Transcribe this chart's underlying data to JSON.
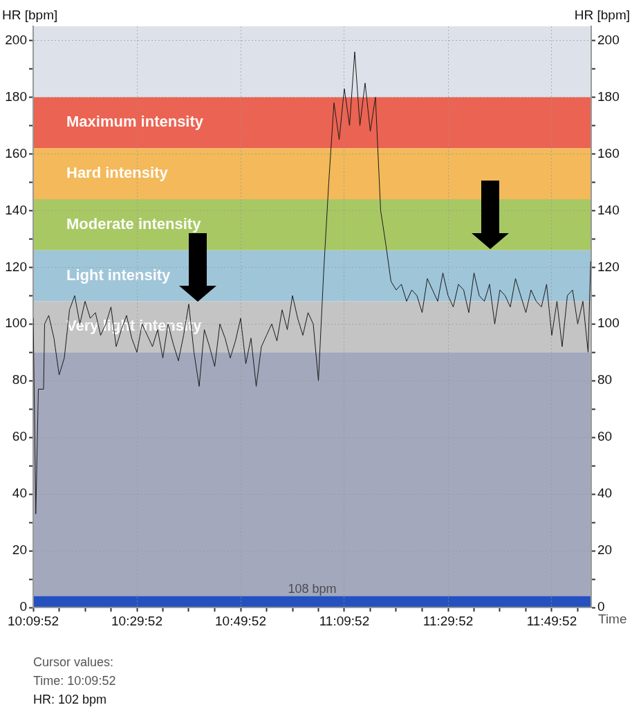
{
  "chart_data": {
    "type": "line",
    "xlabel": "Time",
    "ylabel": "HR [bpm]",
    "y2label": "HR [bpm]",
    "x": [
      10.1644,
      10.1728,
      10.1811,
      10.1978,
      10.2011,
      10.2144,
      10.2311,
      10.2478,
      10.2644,
      10.2811,
      10.2978,
      10.3144,
      10.3311,
      10.3478,
      10.3644,
      10.3811,
      10.3978,
      10.4144,
      10.4311,
      10.4478,
      10.4644,
      10.4811,
      10.4978,
      10.5144,
      10.5311,
      10.5478,
      10.5644,
      10.5811,
      10.5978,
      10.6144,
      10.6311,
      10.6478,
      10.6644,
      10.6811,
      10.6978,
      10.7144,
      10.7311,
      10.7478,
      10.7644,
      10.7811,
      10.7978,
      10.8144,
      10.8311,
      10.8478,
      10.8644,
      10.8811,
      10.8978,
      10.9144,
      10.9311,
      10.9478,
      10.9644,
      10.9811,
      10.9978,
      11.0144,
      11.0311,
      11.0478,
      11.0644,
      11.0811,
      11.0978,
      11.1144,
      11.1311,
      11.1478,
      11.1644,
      11.1811,
      11.1978,
      11.2144,
      11.2311,
      11.2478,
      11.2644,
      11.2811,
      11.2978,
      11.3144,
      11.3311,
      11.3478,
      11.3644,
      11.3811,
      11.3978,
      11.4144,
      11.4311,
      11.4478,
      11.4644,
      11.4811,
      11.4978,
      11.5144,
      11.5311,
      11.5478,
      11.5644,
      11.5811,
      11.5978,
      11.6144,
      11.6311,
      11.6478,
      11.6644,
      11.6811,
      11.6978,
      11.7144,
      11.7311,
      11.7478,
      11.7644,
      11.7811,
      11.7978,
      11.8144,
      11.8311,
      11.8478,
      11.8644,
      11.8811,
      11.8978,
      11.9144,
      11.9311,
      11.9478,
      11.9561
    ],
    "series": [
      {
        "color": "#1a1a1a",
        "values": [
          102,
          33,
          77,
          77,
          100,
          103,
          95,
          82,
          88,
          105,
          110,
          100,
          108,
          102,
          104,
          96,
          100,
          106,
          92,
          98,
          103,
          95,
          90,
          100,
          96,
          92,
          98,
          88,
          100,
          93,
          87,
          96,
          107,
          90,
          78,
          98,
          92,
          85,
          100,
          95,
          88,
          94,
          102,
          86,
          95,
          78,
          92,
          96,
          100,
          94,
          105,
          98,
          110,
          102,
          96,
          104,
          100,
          80,
          118,
          150,
          178,
          165,
          183,
          170,
          196,
          170,
          185,
          168,
          180,
          140,
          128,
          115,
          112,
          114,
          108,
          112,
          110,
          104,
          116,
          112,
          108,
          118,
          110,
          106,
          114,
          112,
          104,
          118,
          110,
          108,
          114,
          100,
          112,
          110,
          106,
          116,
          110,
          104,
          112,
          108,
          106,
          114,
          96,
          108,
          92,
          110,
          112,
          100,
          108,
          90,
          122
        ]
      }
    ],
    "xlim": [
      10.1644,
      11.9578
    ],
    "xticks": [
      {
        "value": 10.1644,
        "label": "10:09:52"
      },
      {
        "value": 10.2478,
        "label": null
      },
      {
        "value": 10.3311,
        "label": null
      },
      {
        "value": 10.4144,
        "label": null
      },
      {
        "value": 10.4978,
        "label": "10:29:52"
      },
      {
        "value": 10.5811,
        "label": null
      },
      {
        "value": 10.6644,
        "label": null
      },
      {
        "value": 10.7478,
        "label": null
      },
      {
        "value": 10.8311,
        "label": "10:49:52"
      },
      {
        "value": 10.9144,
        "label": null
      },
      {
        "value": 10.9978,
        "label": null
      },
      {
        "value": 11.0811,
        "label": null
      },
      {
        "value": 11.1644,
        "label": "11:09:52"
      },
      {
        "value": 11.2478,
        "label": null
      },
      {
        "value": 11.3311,
        "label": null
      },
      {
        "value": 11.4144,
        "label": null
      },
      {
        "value": 11.4978,
        "label": "11:29:52"
      },
      {
        "value": 11.5811,
        "label": null
      },
      {
        "value": 11.6644,
        "label": null
      },
      {
        "value": 11.7478,
        "label": null
      },
      {
        "value": 11.8311,
        "label": "11:49:52"
      },
      {
        "value": 11.9144,
        "label": null
      }
    ],
    "ylim": [
      0,
      205
    ],
    "yticks": [
      0,
      {
        "value": 10,
        "label": null
      },
      20,
      {
        "value": 30,
        "label": null
      },
      40,
      {
        "value": 50,
        "label": null
      },
      60,
      {
        "value": 70,
        "label": null
      },
      80,
      {
        "value": 90,
        "label": null
      },
      100,
      {
        "value": 110,
        "label": null
      },
      120,
      {
        "value": 130,
        "label": null
      },
      140,
      {
        "value": 150,
        "label": null
      },
      160,
      {
        "value": 170,
        "label": null
      },
      180,
      {
        "value": 190,
        "label": null
      },
      200
    ],
    "y2lim": [
      0,
      205
    ],
    "y2ticks": [
      0,
      {
        "value": 10,
        "label": null
      },
      20,
      {
        "value": 30,
        "label": null
      },
      40,
      {
        "value": 50,
        "label": null
      },
      60,
      {
        "value": 70,
        "label": null
      },
      80,
      {
        "value": 90,
        "label": null
      },
      100,
      {
        "value": 110,
        "label": null
      },
      120,
      {
        "value": 130,
        "label": null
      },
      140,
      {
        "value": 150,
        "label": null
      },
      160,
      {
        "value": 170,
        "label": null
      },
      180,
      {
        "value": 190,
        "label": null
      },
      200
    ],
    "bands": [
      {
        "axis": "y",
        "from": 180,
        "to": 205,
        "label": null,
        "color": "#dde2ea"
      },
      {
        "axis": "y",
        "from": 162,
        "to": 180,
        "label": "Maximum intensity",
        "color": "#eb6352"
      },
      {
        "axis": "y",
        "from": 144,
        "to": 162,
        "label": "Hard intensity",
        "color": "#f3b95a"
      },
      {
        "axis": "y",
        "from": 126,
        "to": 144,
        "label": "Moderate intensity",
        "color": "#a8c864"
      },
      {
        "axis": "y",
        "from": 108,
        "to": 126,
        "label": "Light intensity",
        "color": "#9fc5d8"
      },
      {
        "axis": "y",
        "from": 90,
        "to": 108,
        "label": "Very light intensity",
        "color": "#c4c4c4"
      },
      {
        "axis": "y",
        "from": 4,
        "to": 90,
        "label": null,
        "color": "#a4a8bc"
      },
      {
        "axis": "y",
        "from": 0,
        "to": 4,
        "label": "108 bpm",
        "color": "#2551c0"
      }
    ],
    "grid": true,
    "marker": "none",
    "line_style": "solid",
    "annotations": [
      "Cursor values:",
      "Time: 10:09:52",
      "HR: 102 bpm"
    ]
  }
}
